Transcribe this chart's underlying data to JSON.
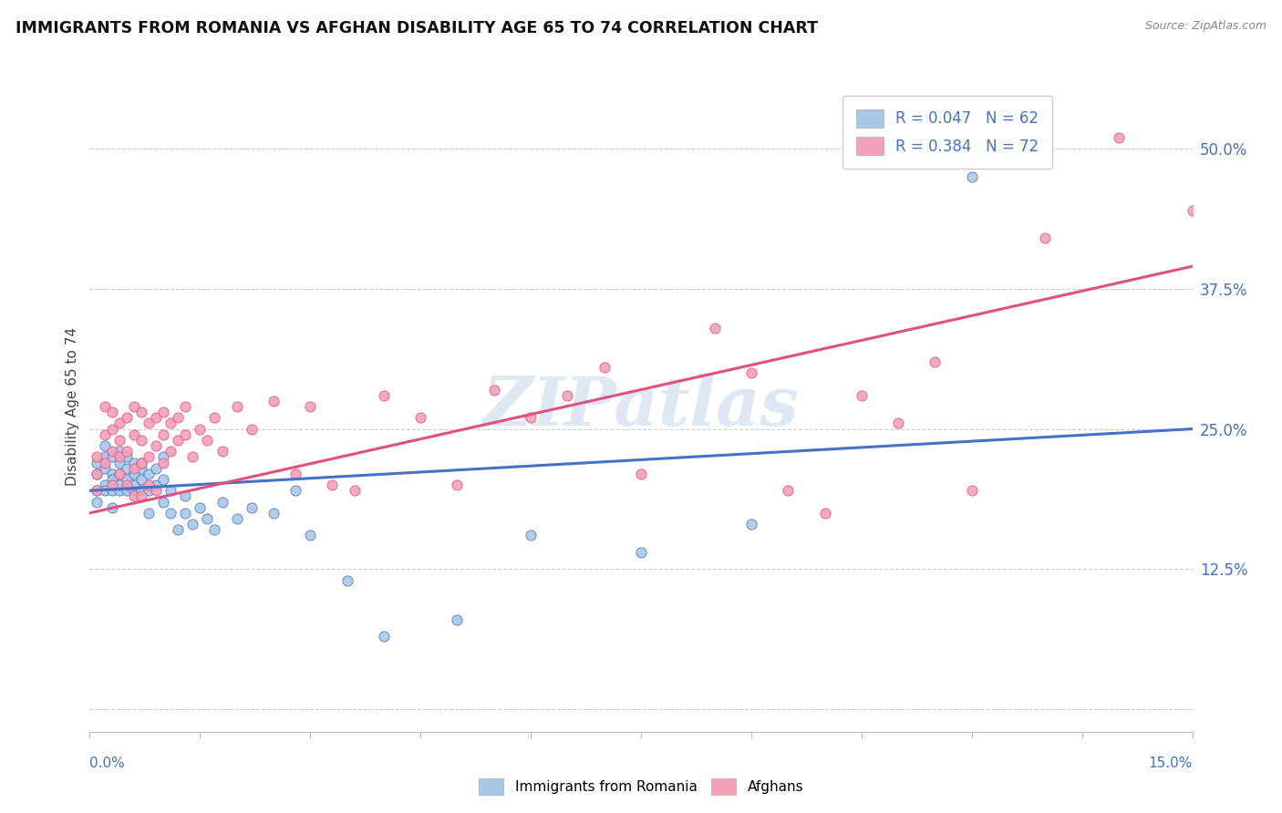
{
  "title": "IMMIGRANTS FROM ROMANIA VS AFGHAN DISABILITY AGE 65 TO 74 CORRELATION CHART",
  "source": "Source: ZipAtlas.com",
  "ylabel": "Disability Age 65 to 74",
  "xlim": [
    0.0,
    0.15
  ],
  "ylim": [
    -0.02,
    0.56
  ],
  "romania_R": 0.047,
  "romania_N": 62,
  "afghan_R": 0.384,
  "afghan_N": 72,
  "romania_color": "#a8c8e8",
  "afghan_color": "#f4a0b8",
  "romania_line_color": "#4472c4",
  "afghan_line_color": "#e05080",
  "legend_romania_label": "Immigrants from Romania",
  "legend_afghan_label": "Afghans",
  "background_color": "#ffffff",
  "yticks": [
    0.0,
    0.125,
    0.25,
    0.375,
    0.5
  ],
  "ytick_labels": [
    "",
    "12.5%",
    "25.0%",
    "37.5%",
    "50.0%"
  ],
  "romania_trend_x0": 0.0,
  "romania_trend_y0": 0.195,
  "romania_trend_x1": 0.15,
  "romania_trend_y1": 0.25,
  "afghan_trend_x0": 0.0,
  "afghan_trend_y0": 0.175,
  "afghan_trend_x1": 0.15,
  "afghan_trend_y1": 0.395,
  "romania_x": [
    0.001,
    0.001,
    0.001,
    0.001,
    0.002,
    0.002,
    0.002,
    0.002,
    0.002,
    0.003,
    0.003,
    0.003,
    0.003,
    0.003,
    0.004,
    0.004,
    0.004,
    0.004,
    0.004,
    0.005,
    0.005,
    0.005,
    0.005,
    0.006,
    0.006,
    0.006,
    0.006,
    0.007,
    0.007,
    0.007,
    0.007,
    0.008,
    0.008,
    0.008,
    0.009,
    0.009,
    0.01,
    0.01,
    0.01,
    0.011,
    0.011,
    0.012,
    0.013,
    0.013,
    0.014,
    0.015,
    0.016,
    0.017,
    0.018,
    0.02,
    0.022,
    0.025,
    0.028,
    0.03,
    0.035,
    0.04,
    0.05,
    0.06,
    0.075,
    0.09,
    0.105,
    0.12
  ],
  "romania_y": [
    0.22,
    0.195,
    0.185,
    0.21,
    0.225,
    0.2,
    0.215,
    0.235,
    0.195,
    0.21,
    0.225,
    0.195,
    0.18,
    0.205,
    0.22,
    0.195,
    0.21,
    0.23,
    0.2,
    0.215,
    0.195,
    0.225,
    0.205,
    0.21,
    0.195,
    0.22,
    0.2,
    0.215,
    0.195,
    0.205,
    0.22,
    0.195,
    0.21,
    0.175,
    0.2,
    0.215,
    0.185,
    0.205,
    0.225,
    0.175,
    0.195,
    0.16,
    0.175,
    0.19,
    0.165,
    0.18,
    0.17,
    0.16,
    0.185,
    0.17,
    0.18,
    0.175,
    0.195,
    0.155,
    0.115,
    0.065,
    0.08,
    0.155,
    0.14,
    0.165,
    0.49,
    0.475
  ],
  "afghan_x": [
    0.001,
    0.001,
    0.001,
    0.002,
    0.002,
    0.002,
    0.003,
    0.003,
    0.003,
    0.003,
    0.004,
    0.004,
    0.004,
    0.004,
    0.005,
    0.005,
    0.005,
    0.006,
    0.006,
    0.006,
    0.006,
    0.007,
    0.007,
    0.007,
    0.007,
    0.008,
    0.008,
    0.008,
    0.009,
    0.009,
    0.009,
    0.01,
    0.01,
    0.01,
    0.011,
    0.011,
    0.012,
    0.012,
    0.013,
    0.013,
    0.014,
    0.015,
    0.016,
    0.017,
    0.018,
    0.02,
    0.022,
    0.025,
    0.028,
    0.03,
    0.033,
    0.036,
    0.04,
    0.045,
    0.05,
    0.055,
    0.06,
    0.065,
    0.07,
    0.075,
    0.085,
    0.09,
    0.095,
    0.1,
    0.105,
    0.11,
    0.115,
    0.12,
    0.125,
    0.13,
    0.14,
    0.15
  ],
  "afghan_y": [
    0.225,
    0.195,
    0.21,
    0.27,
    0.245,
    0.22,
    0.265,
    0.25,
    0.23,
    0.2,
    0.255,
    0.24,
    0.21,
    0.225,
    0.26,
    0.23,
    0.2,
    0.27,
    0.245,
    0.215,
    0.19,
    0.265,
    0.24,
    0.22,
    0.19,
    0.255,
    0.225,
    0.2,
    0.26,
    0.235,
    0.195,
    0.265,
    0.245,
    0.22,
    0.255,
    0.23,
    0.26,
    0.24,
    0.27,
    0.245,
    0.225,
    0.25,
    0.24,
    0.26,
    0.23,
    0.27,
    0.25,
    0.275,
    0.21,
    0.27,
    0.2,
    0.195,
    0.28,
    0.26,
    0.2,
    0.285,
    0.26,
    0.28,
    0.305,
    0.21,
    0.34,
    0.3,
    0.195,
    0.175,
    0.28,
    0.255,
    0.31,
    0.195,
    0.51,
    0.42,
    0.51,
    0.445
  ]
}
